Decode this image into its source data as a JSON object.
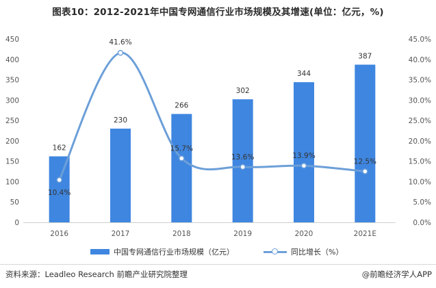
{
  "title": "图表10：2012-2021年中国专网通信行业市场规模及其增速(单位：亿元，%)",
  "legend": {
    "bar_label": "中国专网通信行业市场规模（亿元）",
    "line_label": "同比增长（%）"
  },
  "footer": {
    "source": "资料来源：Leadleo Research 前瞻产业研究院整理",
    "credit": "@前瞻经济学人APP"
  },
  "colors": {
    "bar": "#3f86e0",
    "line": "#6c9fd8"
  },
  "chart_data": {
    "type": "bar",
    "categories": [
      "2016",
      "2017",
      "2018",
      "2019",
      "2020",
      "2021E"
    ],
    "series": [
      {
        "name": "中国专网通信行业市场规模（亿元）",
        "type": "bar",
        "axis": "left",
        "values": [
          162,
          230,
          266,
          302,
          344,
          387
        ],
        "labels": [
          "162",
          "230",
          "266",
          "302",
          "344",
          "387"
        ]
      },
      {
        "name": "同比增长（%）",
        "type": "line",
        "axis": "right",
        "smooth": true,
        "values": [
          10.4,
          41.6,
          15.7,
          13.6,
          13.9,
          12.5
        ],
        "labels": [
          "10.4%",
          "41.6%",
          "15.7%",
          "13.6%",
          "13.9%",
          "12.5%"
        ]
      }
    ],
    "ylim_left": [
      0,
      450
    ],
    "yticks_left": [
      "0",
      "50",
      "100",
      "150",
      "200",
      "250",
      "300",
      "350",
      "400",
      "450"
    ],
    "ylim_right": [
      0,
      45
    ],
    "yticks_right": [
      "0.0%",
      "5.0%",
      "10.0%",
      "15.0%",
      "20.0%",
      "25.0%",
      "30.0%",
      "35.0%",
      "40.0%",
      "45.0%"
    ],
    "grid": false,
    "legend_position": "bottom"
  }
}
